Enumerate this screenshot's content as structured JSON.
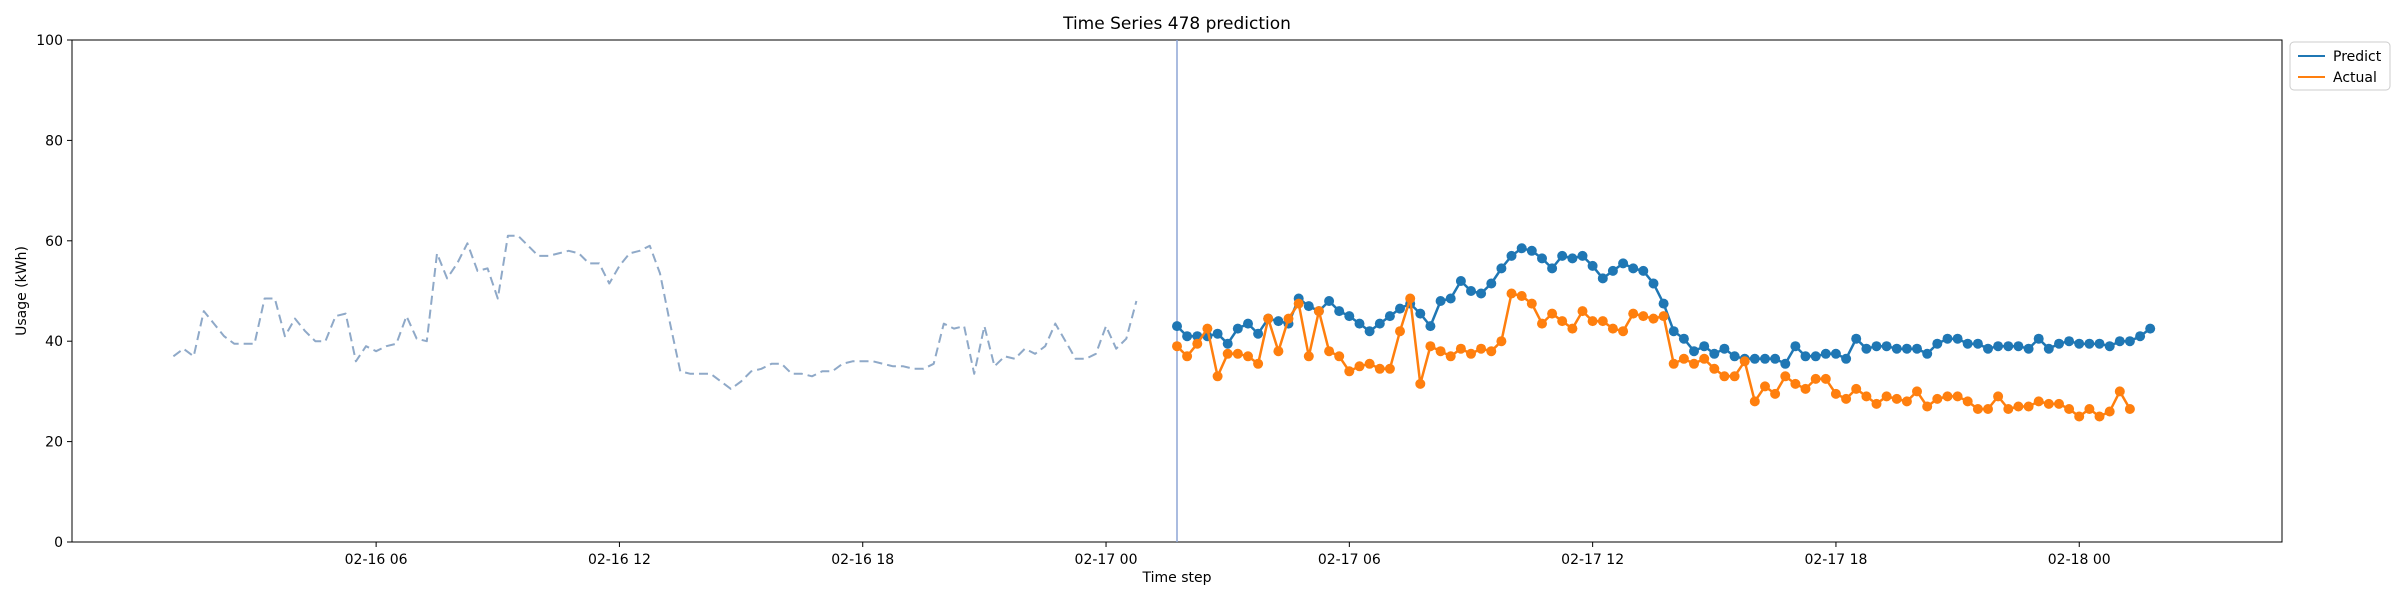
{
  "chart_data": {
    "type": "line",
    "title": "Time Series 478 prediction",
    "xlabel": "Time step",
    "ylabel": "Usage (kWh)",
    "ylim": [
      0,
      100
    ],
    "yticks": [
      0,
      20,
      40,
      60,
      80,
      100
    ],
    "xlim": [
      "2016-02-15 22:30",
      "2016-02-18 05:00"
    ],
    "xticks": [
      {
        "t": "2016-02-16 06:00",
        "label": "02-16 06"
      },
      {
        "t": "2016-02-16 12:00",
        "label": "02-16 12"
      },
      {
        "t": "2016-02-16 18:00",
        "label": "02-16 18"
      },
      {
        "t": "2016-02-17 00:00",
        "label": "02-17 00"
      },
      {
        "t": "2016-02-17 06:00",
        "label": "02-17 06"
      },
      {
        "t": "2016-02-17 12:00",
        "label": "02-17 12"
      },
      {
        "t": "2016-02-17 18:00",
        "label": "02-17 18"
      },
      {
        "t": "2016-02-18 00:00",
        "label": "02-18 00"
      }
    ],
    "grid": false,
    "legend_position": "outside-top-right",
    "forecast_start": "2016-02-17 01:45",
    "series": [
      {
        "name": "",
        "role": "history",
        "style": "dashed",
        "color": "#8fa9c8",
        "x_start": "2016-02-16 01:00",
        "x_step_minutes": 15,
        "values": [
          37,
          38.5,
          37,
          46,
          43.5,
          41,
          39.5,
          39.5,
          39.5,
          48.5,
          48.5,
          41,
          44.5,
          42,
          40,
          40,
          45,
          45.5,
          36,
          39,
          38,
          39,
          39.5,
          45,
          40.5,
          40,
          57.5,
          52.5,
          55.5,
          59.5,
          54,
          54.5,
          48.5,
          61,
          61,
          59,
          57,
          57,
          57.5,
          58,
          57.5,
          55.5,
          55.5,
          51.5,
          55,
          57.5,
          58,
          59,
          53.5,
          43.5,
          34,
          33.5,
          33.5,
          33.5,
          32,
          30.5,
          32,
          34,
          34.5,
          35.5,
          35.5,
          33.5,
          33.5,
          33,
          34,
          34,
          35.5,
          36,
          36,
          36,
          35.5,
          35,
          35,
          34.5,
          34.5,
          35.5,
          43.5,
          42.5,
          43,
          33.5,
          43,
          35,
          37,
          36.5,
          38.5,
          37.5,
          39,
          43.5,
          40,
          36.5,
          36.5,
          37.5,
          43,
          38.5,
          40.5,
          48
        ]
      },
      {
        "name": "Predict",
        "style": "solid-markers",
        "color": "#1f77b4",
        "x_start": "2016-02-17 01:45",
        "x_step_minutes": 15,
        "values": [
          43,
          41,
          41,
          41,
          41.5,
          39.5,
          42.5,
          43.5,
          41.5,
          44.5,
          44,
          43.5,
          48.5,
          47,
          46,
          48,
          46,
          45,
          43.5,
          42,
          43.5,
          45,
          46.5,
          47.5,
          45.5,
          43,
          48,
          48.5,
          52,
          50,
          49.5,
          51.5,
          54.5,
          57,
          58.5,
          58,
          56.5,
          54.5,
          57,
          56.5,
          57,
          55,
          52.5,
          54,
          55.5,
          54.5,
          54,
          51.5,
          47.5,
          42,
          40.5,
          38,
          39,
          37.5,
          38.5,
          37,
          36.5,
          36.5,
          36.5,
          36.5,
          35.5,
          39,
          37,
          37,
          37.5,
          37.5,
          36.5,
          40.5,
          38.5,
          39,
          39,
          38.5,
          38.5,
          38.5,
          37.5,
          39.5,
          40.5,
          40.5,
          39.5,
          39.5,
          38.5,
          39,
          39,
          39,
          38.5,
          40.5,
          38.5,
          39.5,
          40,
          39.5,
          39.5,
          39.5,
          39,
          40,
          40,
          41,
          42.5
        ]
      },
      {
        "name": "Actual",
        "style": "solid-markers",
        "color": "#ff7f0e",
        "x_start": "2016-02-17 01:45",
        "x_step_minutes": 15,
        "values": [
          39,
          37,
          39.5,
          42.5,
          33,
          37.5,
          37.5,
          37,
          35.5,
          44.5,
          38,
          44.5,
          47.5,
          37,
          46,
          38,
          37,
          34,
          35,
          35.5,
          34.5,
          34.5,
          42,
          48.5,
          31.5,
          39,
          38,
          37,
          38.5,
          37.5,
          38.5,
          38,
          40,
          49.5,
          49,
          47.5,
          43.5,
          45.5,
          44,
          42.5,
          46,
          44,
          44,
          42.5,
          42,
          45.5,
          45,
          44.5,
          45,
          35.5,
          36.5,
          35.5,
          36.5,
          34.5,
          33,
          33,
          36,
          28,
          31,
          29.5,
          33,
          31.5,
          30.5,
          32.5,
          32.5,
          29.5,
          28.5,
          30.5,
          29,
          27.5,
          29,
          28.5,
          28,
          30,
          27,
          28.5,
          29,
          29,
          28,
          26.5,
          26.5,
          29,
          26.5,
          27,
          27,
          28,
          27.5,
          27.5,
          26.5,
          25,
          26.5,
          25,
          26,
          30,
          26.5
        ]
      }
    ]
  }
}
